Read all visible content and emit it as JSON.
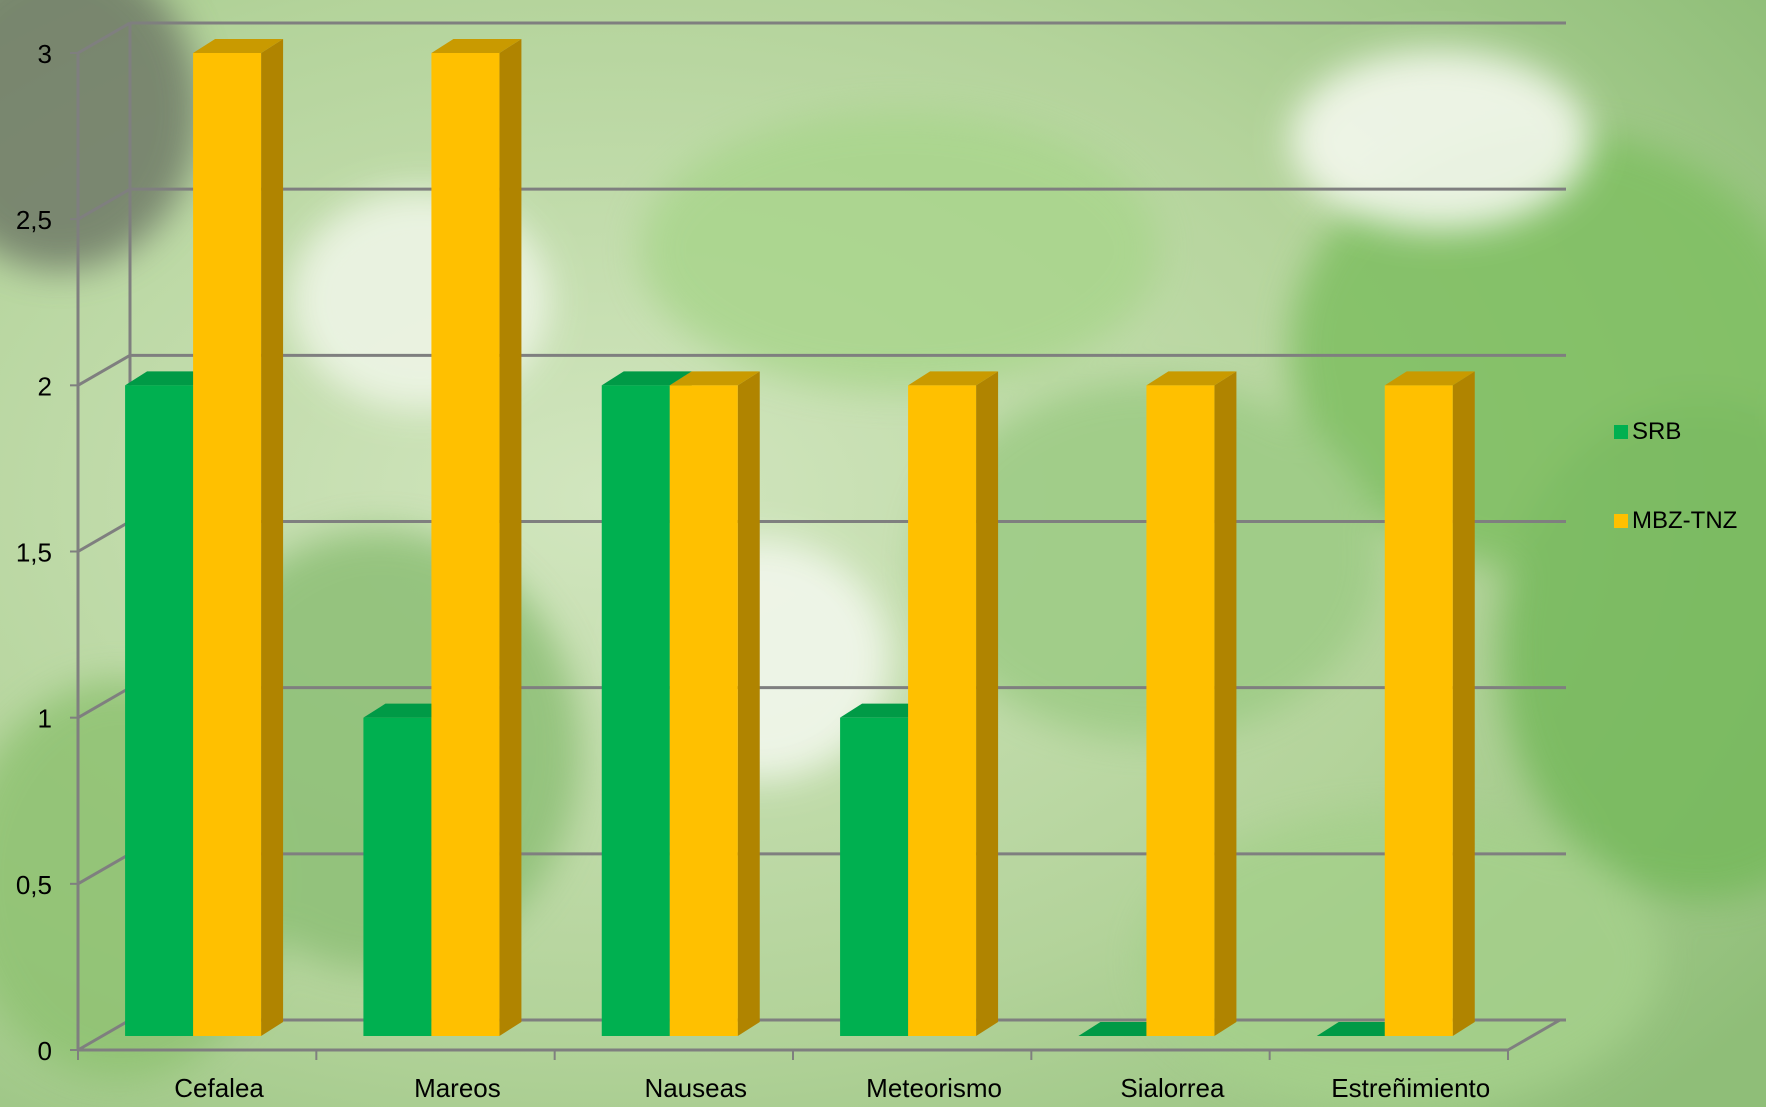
{
  "chart_data": {
    "type": "bar",
    "title": "",
    "xlabel": "",
    "ylabel": "",
    "categories": [
      "Cefalea",
      "Mareos",
      "Nauseas",
      "Meteorismo",
      "Sialorrea",
      "Estreñimiento"
    ],
    "series": [
      {
        "name": "SRB",
        "values": [
          2,
          1,
          2,
          1,
          0,
          0
        ],
        "color": "#00b050",
        "side_color": "#007a38",
        "top_color": "#009a46"
      },
      {
        "name": "MBZ-TNZ",
        "values": [
          3,
          3,
          2,
          2,
          2,
          2
        ],
        "color": "#ffc000",
        "side_color": "#b08400",
        "top_color": "#c99a00"
      }
    ],
    "ylim": [
      0,
      3
    ],
    "yticks": [
      "0",
      "0,5",
      "1",
      "1,5",
      "2",
      "2,5",
      "3"
    ],
    "ytick_values": [
      0,
      0.5,
      1,
      1.5,
      2,
      2.5,
      3
    ],
    "grid": true,
    "style": "3d-clustered-column",
    "legend_position": "right",
    "background": "photo of green plant with white flowers"
  }
}
